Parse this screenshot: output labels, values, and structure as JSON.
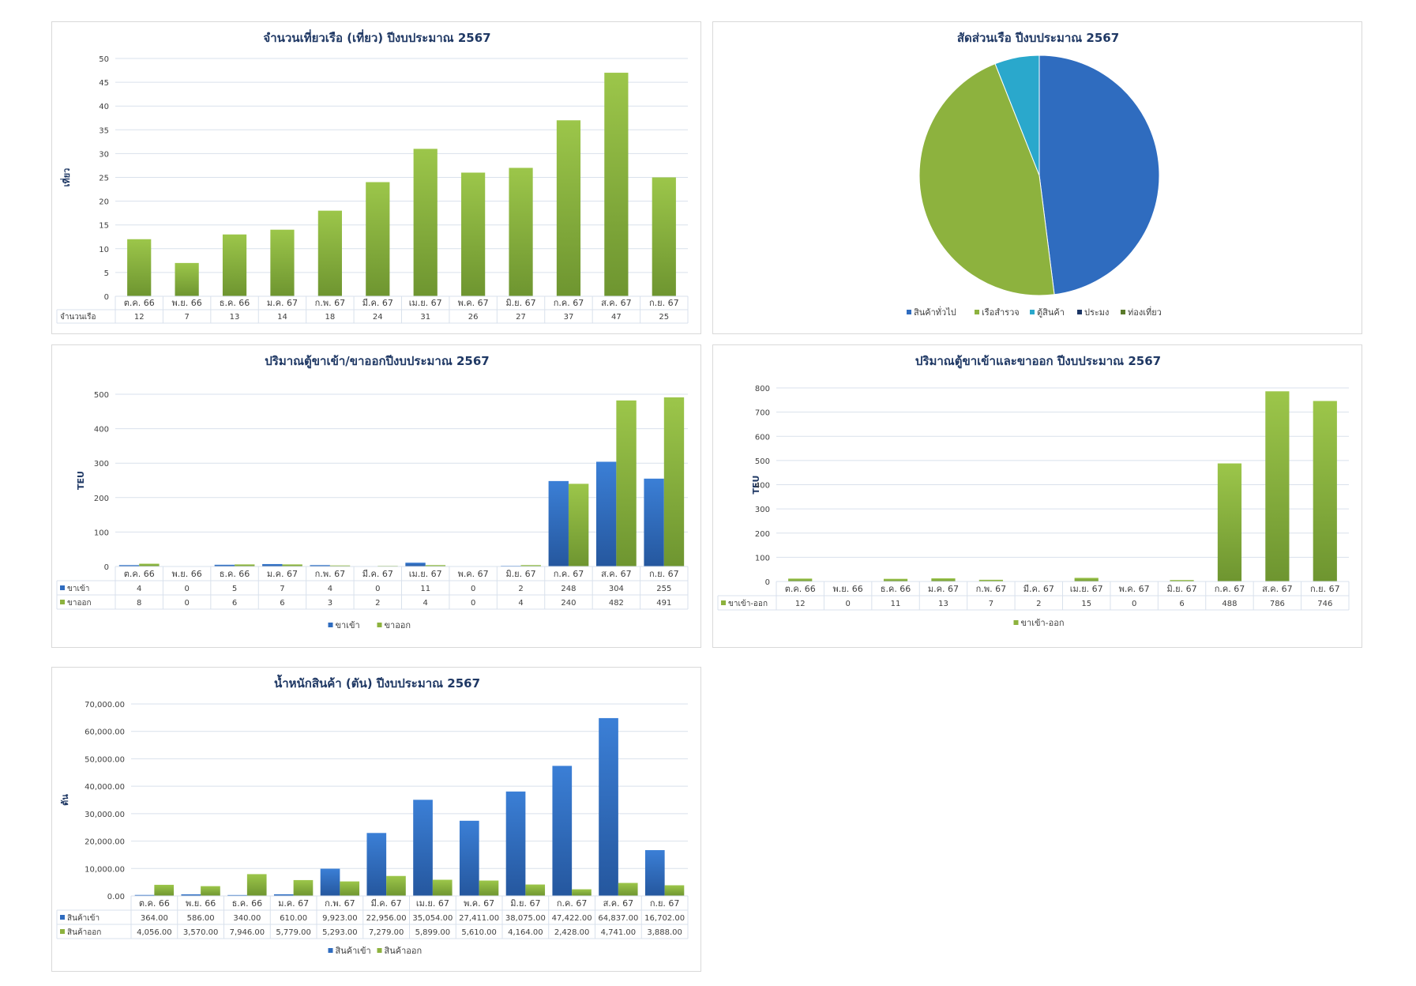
{
  "months": [
    "ต.ค. 66",
    "พ.ย. 66",
    "ธ.ค. 66",
    "ม.ค. 67",
    "ก.พ. 67",
    "มี.ค. 67",
    "เม.ย. 67",
    "พ.ค. 67",
    "มิ.ย. 67",
    "ก.ค. 67",
    "ส.ค. 67",
    "ก.ย. 67"
  ],
  "colors": {
    "green": "#8db23e",
    "blue": "#2f6cbf",
    "grid": "#d9e1ec",
    "title": "#1f3864",
    "border": "#d9d9d9"
  },
  "chart_data": [
    {
      "id": "trips",
      "type": "bar",
      "title": "จำนวนเที่ยวเรือ (เที่ยว) ปีงบประมาณ 2567",
      "ylabel": "เที่ยว",
      "ylim": [
        0,
        50
      ],
      "yticks": [
        0,
        5,
        10,
        15,
        20,
        25,
        30,
        35,
        40,
        45,
        50
      ],
      "ytick_labels": [
        "0",
        "5",
        "10",
        "15",
        "20",
        "25",
        "30",
        "35",
        "40",
        "45",
        "50"
      ],
      "categories": [
        "ต.ค. 66",
        "พ.ย. 66",
        "ธ.ค. 66",
        "ม.ค. 67",
        "ก.พ. 67",
        "มี.ค. 67",
        "เม.ย. 67",
        "พ.ค. 67",
        "มิ.ย. 67",
        "ก.ค. 67",
        "ส.ค. 67",
        "ก.ย. 67"
      ],
      "series": [
        {
          "name": "จำนวนเรือ",
          "color": "green",
          "values": [
            12,
            7,
            13,
            14,
            18,
            24,
            31,
            26,
            27,
            37,
            47,
            25
          ]
        }
      ],
      "table_rows": [
        {
          "label": "จำนวนเรือ",
          "values": [
            "12",
            "7",
            "13",
            "14",
            "18",
            "24",
            "31",
            "26",
            "27",
            "37",
            "47",
            "25"
          ]
        }
      ],
      "legend": []
    },
    {
      "id": "share",
      "type": "pie",
      "title": "สัดส่วนเรือ ปีงบประมาณ 2567",
      "slices": [
        {
          "name": "สินค้าทั่วไป",
          "value": 48,
          "color": "#2f6cbf"
        },
        {
          "name": "เรือสำรวจ",
          "value": 46,
          "color": "#8db23e"
        },
        {
          "name": "ตู้สินค้า",
          "value": 6,
          "color": "#2aa8cc"
        },
        {
          "name": "ประมง",
          "value": 0,
          "color": "#1b3564"
        },
        {
          "name": "ท่องเที่ยว",
          "value": 0,
          "color": "#5a7a2a"
        }
      ],
      "legend": [
        "สินค้าทั่วไป",
        "เรือสำรวจ",
        "ตู้สินค้า",
        "ประมง",
        "ท่องเที่ยว"
      ]
    },
    {
      "id": "teu_inout",
      "type": "bar",
      "title": "ปริมาณตู้ขาเข้า/ขาออกปีงบประมาณ 2567",
      "ylabel": "TEU",
      "ylim": [
        0,
        500
      ],
      "yticks": [
        0,
        100,
        200,
        300,
        400,
        500
      ],
      "ytick_labels": [
        "0",
        "100",
        "200",
        "300",
        "400",
        "500"
      ],
      "categories": [
        "ต.ค. 66",
        "พ.ย. 66",
        "ธ.ค. 66",
        "ม.ค. 67",
        "ก.พ. 67",
        "มี.ค. 67",
        "เม.ย. 67",
        "พ.ค. 67",
        "มิ.ย. 67",
        "ก.ค. 67",
        "ส.ค. 67",
        "ก.ย. 67"
      ],
      "series": [
        {
          "name": "ขาเข้า",
          "color": "blue",
          "values": [
            4,
            0,
            5,
            7,
            4,
            0,
            11,
            0,
            2,
            248,
            304,
            255
          ]
        },
        {
          "name": "ขาออก",
          "color": "green",
          "values": [
            8,
            0,
            6,
            6,
            3,
            2,
            4,
            0,
            4,
            240,
            482,
            491
          ]
        }
      ],
      "table_rows": [
        {
          "label": "ขาเข้า",
          "color": "blue",
          "values": [
            "4",
            "0",
            "5",
            "7",
            "4",
            "0",
            "11",
            "0",
            "2",
            "248",
            "304",
            "255"
          ]
        },
        {
          "label": "ขาออก",
          "color": "green",
          "values": [
            "8",
            "0",
            "6",
            "6",
            "3",
            "2",
            "4",
            "0",
            "4",
            "240",
            "482",
            "491"
          ]
        }
      ],
      "legend": [
        "ขาเข้า",
        "ขาออก"
      ]
    },
    {
      "id": "teu_total",
      "type": "bar",
      "title": "ปริมาณตู้ขาเข้าและขาออก ปีงบประมาณ 2567",
      "ylabel": "TEU",
      "ylim": [
        0,
        800
      ],
      "yticks": [
        0,
        100,
        200,
        300,
        400,
        500,
        600,
        700,
        800
      ],
      "ytick_labels": [
        "0",
        "100",
        "200",
        "300",
        "400",
        "500",
        "600",
        "700",
        "800"
      ],
      "categories": [
        "ต.ค. 66",
        "พ.ย. 66",
        "ธ.ค. 66",
        "ม.ค. 67",
        "ก.พ. 67",
        "มี.ค. 67",
        "เม.ย. 67",
        "พ.ค. 67",
        "มิ.ย. 67",
        "ก.ค. 67",
        "ส.ค. 67",
        "ก.ย. 67"
      ],
      "series": [
        {
          "name": "ขาเข้า-ออก",
          "color": "green",
          "values": [
            12,
            0,
            11,
            13,
            7,
            2,
            15,
            0,
            6,
            488,
            786,
            746
          ]
        }
      ],
      "table_rows": [
        {
          "label": "ขาเข้า-ออก",
          "color": "green",
          "values": [
            "12",
            "0",
            "11",
            "13",
            "7",
            "2",
            "15",
            "0",
            "6",
            "488",
            "786",
            "746"
          ]
        }
      ],
      "legend": [
        "ขาเข้า-ออก"
      ]
    },
    {
      "id": "weight",
      "type": "bar",
      "title": "น้ำหนักสินค้า (ตัน) ปีงบประมาณ 2567",
      "ylabel": "ตัน",
      "ylim": [
        0,
        70000
      ],
      "yticks": [
        0,
        10000,
        20000,
        30000,
        40000,
        50000,
        60000,
        70000
      ],
      "ytick_labels": [
        "0.00",
        "10,000.00",
        "20,000.00",
        "30,000.00",
        "40,000.00",
        "50,000.00",
        "60,000.00",
        "70,000.00"
      ],
      "categories": [
        "ต.ค. 66",
        "พ.ย. 66",
        "ธ.ค. 66",
        "ม.ค. 67",
        "ก.พ. 67",
        "มี.ค. 67",
        "เม.ย. 67",
        "พ.ค. 67",
        "มิ.ย. 67",
        "ก.ค. 67",
        "ส.ค. 67",
        "ก.ย. 67"
      ],
      "series": [
        {
          "name": "สินค้าเข้า",
          "color": "blue",
          "values": [
            364,
            586,
            340,
            610,
            9923,
            22956,
            35054,
            27411,
            38075,
            47422,
            64837,
            16702
          ]
        },
        {
          "name": "สินค้าออก",
          "color": "green",
          "values": [
            4056,
            3570,
            7946,
            5779,
            5293,
            7279,
            5899,
            5610,
            4164,
            2428,
            4741,
            3888
          ]
        }
      ],
      "table_rows": [
        {
          "label": "สินค้าเข้า",
          "color": "blue",
          "values": [
            "364.00",
            "586.00",
            "340.00",
            "610.00",
            "9,923.00",
            "22,956.00",
            "35,054.00",
            "27,411.00",
            "38,075.00",
            "47,422.00",
            "64,837.00",
            "16,702.00"
          ]
        },
        {
          "label": "สินค้าออก",
          "color": "green",
          "values": [
            "4,056.00",
            "3,570.00",
            "7,946.00",
            "5,779.00",
            "5,293.00",
            "7,279.00",
            "5,899.00",
            "5,610.00",
            "4,164.00",
            "2,428.00",
            "4,741.00",
            "3,888.00"
          ]
        }
      ],
      "legend": [
        "สินค้าเข้า",
        "สินค้าออก"
      ]
    }
  ]
}
